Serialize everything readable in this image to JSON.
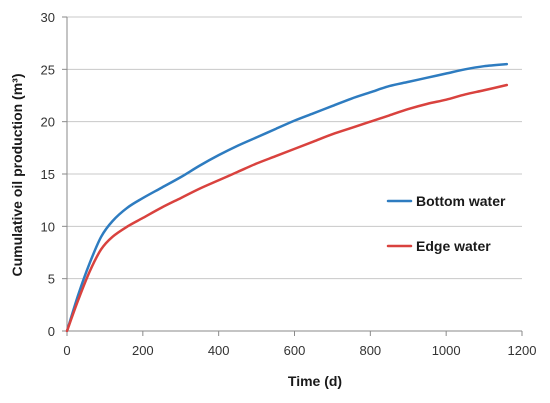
{
  "chart_data": {
    "type": "line",
    "title": "",
    "xlabel": "Time (d)",
    "ylabel": "Cumulative oil production (m³)",
    "xlim": [
      0,
      1200
    ],
    "ylim": [
      0,
      30
    ],
    "xticks": [
      "0",
      "200",
      "400",
      "600",
      "800",
      "1000",
      "1200"
    ],
    "yticks": [
      "0",
      "5",
      "10",
      "15",
      "20",
      "25",
      "30"
    ],
    "grid": "horizontal",
    "legend_position": "right",
    "series": [
      {
        "name": "Bottom water",
        "color": "#2e7cc0",
        "x": [
          0,
          30,
          60,
          90,
          120,
          160,
          200,
          250,
          300,
          350,
          400,
          450,
          500,
          550,
          600,
          650,
          700,
          750,
          800,
          850,
          900,
          950,
          1000,
          1050,
          1100,
          1160
        ],
        "y": [
          0,
          3.5,
          6.5,
          9.0,
          10.5,
          11.8,
          12.7,
          13.7,
          14.7,
          15.8,
          16.8,
          17.7,
          18.5,
          19.3,
          20.1,
          20.8,
          21.5,
          22.2,
          22.8,
          23.4,
          23.8,
          24.2,
          24.6,
          25.0,
          25.3,
          25.5
        ]
      },
      {
        "name": "Edge water",
        "color": "#d9423e",
        "x": [
          0,
          30,
          60,
          90,
          120,
          160,
          200,
          250,
          300,
          350,
          400,
          450,
          500,
          550,
          600,
          650,
          700,
          750,
          800,
          850,
          900,
          950,
          1000,
          1050,
          1100,
          1160
        ],
        "y": [
          0,
          3.0,
          5.7,
          7.8,
          9.0,
          10.0,
          10.8,
          11.8,
          12.7,
          13.6,
          14.4,
          15.2,
          16.0,
          16.7,
          17.4,
          18.1,
          18.8,
          19.4,
          20.0,
          20.6,
          21.2,
          21.7,
          22.1,
          22.6,
          23.0,
          23.5
        ]
      }
    ]
  }
}
